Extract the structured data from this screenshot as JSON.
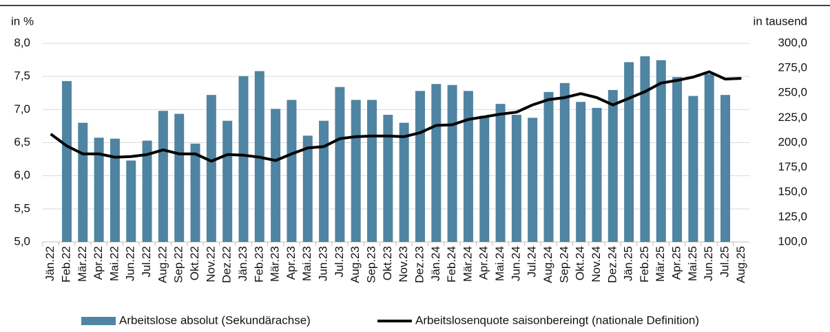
{
  "chart_data": {
    "type": "bar-line",
    "y_axis_label": "in %",
    "y2_axis_label": "in tausend",
    "categories": [
      "Jän.22",
      "Feb.22",
      "Mär.22",
      "Apr.22",
      "Mai.22",
      "Jun.22",
      "Jul.22",
      "Aug.22",
      "Sep.22",
      "Okt.22",
      "Nov.22",
      "Dez.22",
      "Jän.23",
      "Feb.23",
      "Mär.23",
      "Apr.23",
      "Mai.23",
      "Jun.23",
      "Jul.23",
      "Aug.23",
      "Sep.23",
      "Okt.23",
      "Nov.23",
      "Dez.23",
      "Jän.24",
      "Feb.24",
      "Mär.24",
      "Apr.24",
      "Mai.24",
      "Jun.24",
      "Jul.24",
      "Aug.24",
      "Sep.24",
      "Okt.24",
      "Nov.24",
      "Dez.24",
      "Jän.25",
      "Feb.25",
      "Mär.25",
      "Apr.25",
      "Mai.25",
      "Jun.25",
      "Jul.25",
      "Aug.25"
    ],
    "series": [
      {
        "name": "Arbeitslose absolut (Sekundärachse)",
        "type": "bar",
        "axis": "y2",
        "color": "#4f84a2",
        "values": [
          null,
          262,
          220,
          205,
          204,
          182,
          202,
          232,
          229,
          199,
          248,
          222,
          267,
          272,
          234,
          243,
          207,
          222,
          256,
          243,
          243,
          228,
          220,
          252,
          259,
          258,
          252,
          227,
          239,
          228,
          225,
          251,
          260,
          241,
          235,
          253,
          281,
          287,
          283,
          266,
          247,
          269,
          248,
          null
        ]
      },
      {
        "name": "Arbeitslosenquote saisonbereingt (nationale Definition)",
        "type": "line",
        "color": "#000000",
        "values": [
          6.63,
          6.45,
          6.33,
          6.33,
          6.28,
          6.29,
          6.32,
          6.39,
          6.33,
          6.33,
          6.22,
          6.32,
          6.31,
          6.28,
          6.23,
          6.33,
          6.42,
          6.44,
          6.56,
          6.59,
          6.6,
          6.6,
          6.59,
          6.65,
          6.76,
          6.77,
          6.85,
          6.89,
          6.93,
          6.96,
          7.07,
          7.15,
          7.18,
          7.24,
          7.18,
          7.07,
          7.17,
          7.27,
          7.4,
          7.44,
          7.49,
          7.57,
          7.46,
          7.47
        ]
      }
    ],
    "ylim": [
      5,
      8
    ],
    "yticks": [
      {
        "value": 5,
        "label": "5,0"
      },
      {
        "value": 5.5,
        "label": "5,5"
      },
      {
        "value": 6,
        "label": "6,0"
      },
      {
        "value": 6.5,
        "label": "6,5"
      },
      {
        "value": 7,
        "label": "7,0"
      },
      {
        "value": 7.5,
        "label": "7,5"
      },
      {
        "value": 8,
        "label": "8,0"
      }
    ],
    "y2lim": [
      100,
      300
    ],
    "y2ticks": [
      {
        "value": 100,
        "label": "100,0"
      },
      {
        "value": 125,
        "label": "125,0"
      },
      {
        "value": 150,
        "label": "150,0"
      },
      {
        "value": 175,
        "label": "175,0"
      },
      {
        "value": 200,
        "label": "200,0"
      },
      {
        "value": 225,
        "label": "225,0"
      },
      {
        "value": 250,
        "label": "250,0"
      },
      {
        "value": 275,
        "label": "275,0"
      },
      {
        "value": 300,
        "label": "300,0"
      }
    ],
    "grid": true
  }
}
